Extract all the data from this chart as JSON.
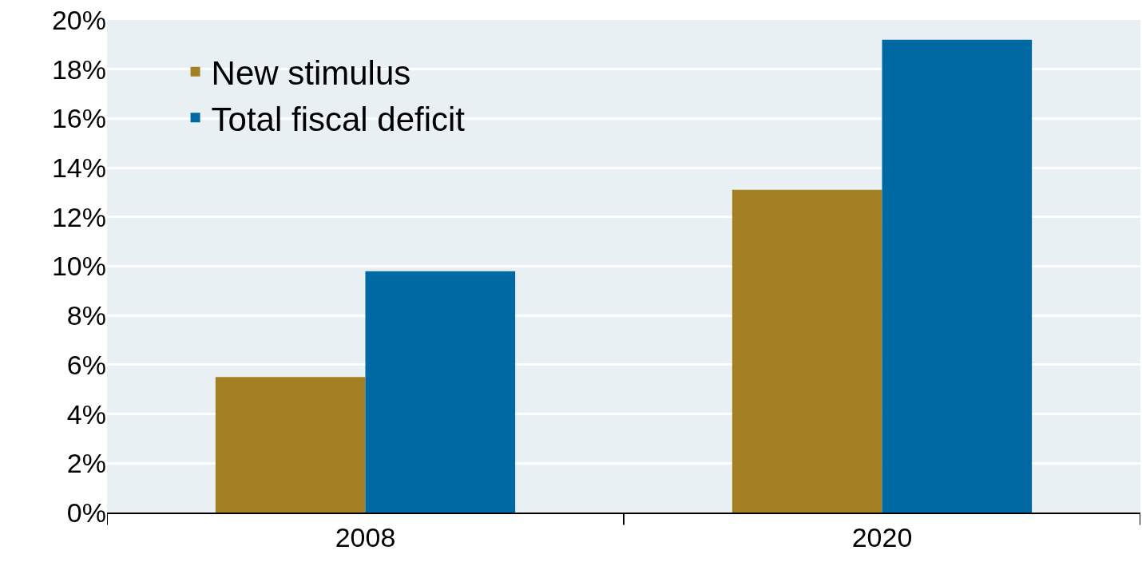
{
  "chart_data": {
    "type": "bar",
    "categories": [
      "2008",
      "2020"
    ],
    "series": [
      {
        "name": "New stimulus",
        "color": "#a38024",
        "values": [
          5.5,
          13.1
        ]
      },
      {
        "name": "Total fiscal deficit",
        "color": "#0068a2",
        "values": [
          9.8,
          19.2
        ]
      }
    ],
    "ylim": [
      0,
      20
    ],
    "yticks": [
      {
        "value": 0,
        "label": "0%"
      },
      {
        "value": 2,
        "label": "2%"
      },
      {
        "value": 4,
        "label": "4%"
      },
      {
        "value": 6,
        "label": "6%"
      },
      {
        "value": 8,
        "label": "8%"
      },
      {
        "value": 10,
        "label": "10%"
      },
      {
        "value": 12,
        "label": "12%"
      },
      {
        "value": 14,
        "label": "14%"
      },
      {
        "value": 16,
        "label": "16%"
      },
      {
        "value": 18,
        "label": "18%"
      },
      {
        "value": 20,
        "label": "20%"
      }
    ],
    "grid": "y",
    "legend": "top left"
  }
}
